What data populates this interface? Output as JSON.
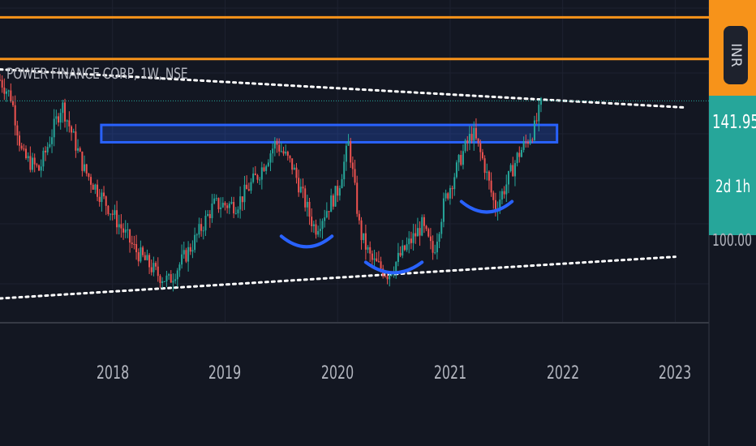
{
  "chart_data": {
    "type": "candlestick",
    "title": "POWER FINANCE CORP, 1W, NSE",
    "symbol": "POWER FINANCE CORP",
    "interval": "1W",
    "exchange": "NSE",
    "x_ticks": [
      "2018",
      "2019",
      "2020",
      "2021",
      "2022",
      "2023"
    ],
    "x_range": [
      2017.0,
      2023.3
    ],
    "y_range": [
      78,
      171
    ],
    "last_price": "141.95",
    "countdown": "2d 1h",
    "currency": "INR",
    "price_scale_label_partial": "100.00",
    "colors": {
      "background": "#131722",
      "up_candle": "#26a69a",
      "down_candle": "#ef5350",
      "resistance_zone": "#2962ff",
      "horizontal_lines": "#f7931a",
      "trendlines": "#ffffff",
      "last_price_line": "#26a69a"
    },
    "price_path": [
      [
        2017.0,
        148
      ],
      [
        2017.1,
        143
      ],
      [
        2017.2,
        126
      ],
      [
        2017.35,
        122
      ],
      [
        2017.55,
        141
      ],
      [
        2017.75,
        122
      ],
      [
        2017.95,
        112
      ],
      [
        2018.2,
        99
      ],
      [
        2018.4,
        92
      ],
      [
        2018.5,
        90
      ],
      [
        2018.7,
        100
      ],
      [
        2018.9,
        112
      ],
      [
        2019.1,
        112
      ],
      [
        2019.3,
        121
      ],
      [
        2019.45,
        130
      ],
      [
        2019.6,
        123
      ],
      [
        2019.75,
        109
      ],
      [
        2019.8,
        105
      ],
      [
        2020.0,
        116
      ],
      [
        2020.1,
        130
      ],
      [
        2020.2,
        104
      ],
      [
        2020.3,
        96
      ],
      [
        2020.45,
        92
      ],
      [
        2020.55,
        97
      ],
      [
        2020.75,
        106
      ],
      [
        2020.85,
        98
      ],
      [
        2020.95,
        113
      ],
      [
        2021.1,
        126
      ],
      [
        2021.2,
        133
      ],
      [
        2021.3,
        124
      ],
      [
        2021.4,
        111
      ],
      [
        2021.5,
        118
      ],
      [
        2021.6,
        126
      ],
      [
        2021.75,
        134
      ],
      [
        2021.82,
        142
      ]
    ],
    "resistance_zone": [
      130,
      135
    ],
    "horizontal_lines": [
      166,
      154
    ],
    "upper_trendline": [
      [
        2017.0,
        151
      ],
      [
        2023.1,
        140
      ]
    ],
    "lower_trendline": [
      [
        2017.0,
        85
      ],
      [
        2023.0,
        97
      ]
    ],
    "last_price_value": 141.95,
    "rounding_bottoms": [
      {
        "x": [
          2019.5,
          2019.95
        ],
        "y": 102
      },
      {
        "x": [
          2020.25,
          2020.75
        ],
        "y": 94.5
      },
      {
        "x": [
          2021.1,
          2021.55
        ],
        "y": 112
      }
    ]
  }
}
